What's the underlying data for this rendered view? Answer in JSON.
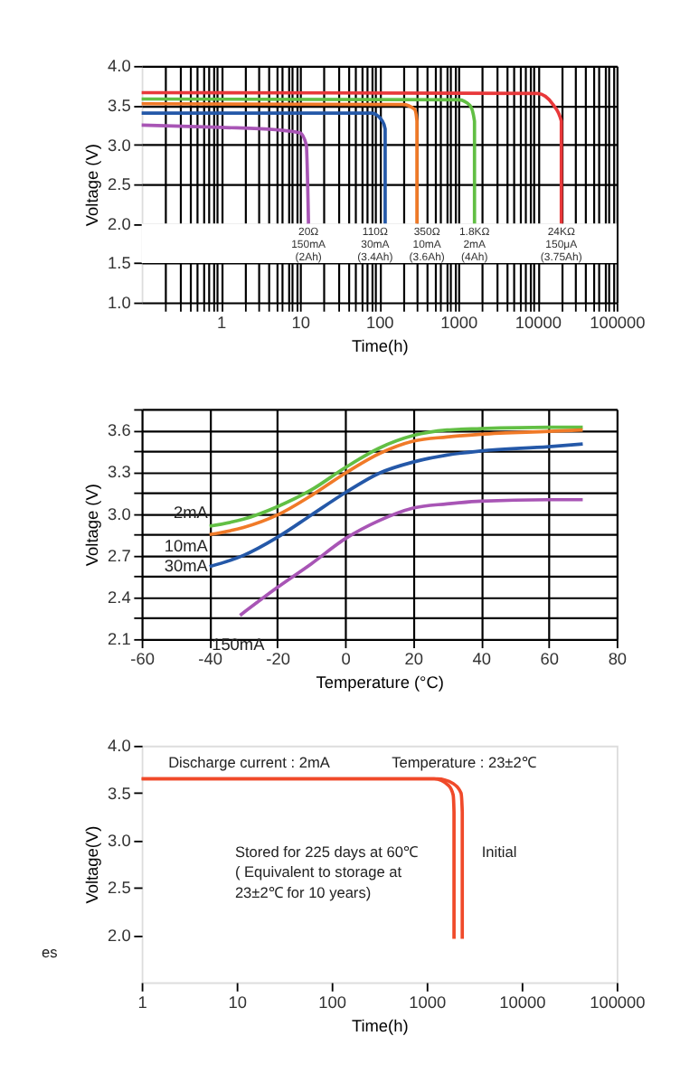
{
  "chart_data": [
    {
      "type": "line",
      "xlabel": "Time(h)",
      "ylabel": "Voltage (V)",
      "log": "x",
      "grid": true,
      "xlim": [
        0.1,
        100000
      ],
      "xticks": [
        {
          "value": 0.2,
          "label": null
        },
        {
          "value": 0.3,
          "label": null
        },
        {
          "value": 0.4,
          "label": null
        },
        {
          "value": 0.5,
          "label": null
        },
        {
          "value": 0.6,
          "label": null
        },
        {
          "value": 0.7,
          "label": null
        },
        {
          "value": 0.8,
          "label": null
        },
        {
          "value": 0.9,
          "label": null
        },
        1,
        {
          "value": 2,
          "label": null
        },
        {
          "value": 3,
          "label": null
        },
        {
          "value": 4,
          "label": null
        },
        {
          "value": 5,
          "label": null
        },
        {
          "value": 6,
          "label": null
        },
        {
          "value": 7,
          "label": null
        },
        {
          "value": 8,
          "label": null
        },
        {
          "value": 9,
          "label": null
        },
        10,
        {
          "value": 20,
          "label": null
        },
        {
          "value": 30,
          "label": null
        },
        {
          "value": 40,
          "label": null
        },
        {
          "value": 50,
          "label": null
        },
        {
          "value": 60,
          "label": null
        },
        {
          "value": 70,
          "label": null
        },
        {
          "value": 80,
          "label": null
        },
        {
          "value": 90,
          "label": null
        },
        100,
        {
          "value": 200,
          "label": null
        },
        {
          "value": 300,
          "label": null
        },
        {
          "value": 400,
          "label": null
        },
        {
          "value": 500,
          "label": null
        },
        {
          "value": 600,
          "label": null
        },
        {
          "value": 700,
          "label": null
        },
        {
          "value": 800,
          "label": null
        },
        {
          "value": 900,
          "label": null
        },
        1000,
        {
          "value": 2000,
          "label": null
        },
        {
          "value": 3000,
          "label": null
        },
        {
          "value": 4000,
          "label": null
        },
        {
          "value": 5000,
          "label": null
        },
        {
          "value": 6000,
          "label": null
        },
        {
          "value": 7000,
          "label": null
        },
        {
          "value": 8000,
          "label": null
        },
        {
          "value": 9000,
          "label": null
        },
        10000,
        {
          "value": 20000,
          "label": null
        },
        {
          "value": 30000,
          "label": null
        },
        {
          "value": 40000,
          "label": null
        },
        {
          "value": 50000,
          "label": null
        },
        {
          "value": 60000,
          "label": null
        },
        {
          "value": 70000,
          "label": null
        },
        {
          "value": 80000,
          "label": null
        },
        {
          "value": 90000,
          "label": null
        },
        100000
      ],
      "ylim": [
        1.0,
        4.0
      ],
      "yticks": [
        {
          "value": 1.0,
          "label": "1.0"
        },
        1.5,
        {
          "value": 2.0,
          "label": "2.0"
        },
        2.5,
        {
          "value": 3.0,
          "label": "3.0"
        },
        3.5,
        {
          "value": 4.0,
          "label": "4.0"
        }
      ],
      "bands": [
        {
          "axis": "y",
          "from": 1.5,
          "to": 2.0,
          "color": "#ffffff"
        }
      ],
      "series": [
        {
          "name": "20Ω\n150mA\n(2Ah)",
          "color": "#a855b5",
          "x": [
            0.1,
            1,
            5,
            10,
            12,
            12.8
          ],
          "values": [
            3.25,
            3.22,
            3.19,
            3.15,
            3.0,
            2.0
          ]
        },
        {
          "name": "110Ω\n30mA\n(3.4Ah)",
          "color": "#2458a8",
          "x": [
            0.1,
            80,
            110,
            119,
            119
          ],
          "values": [
            3.4,
            3.4,
            3.3,
            3.2,
            2.0
          ]
        },
        {
          "name": "350Ω\n10mA\n(3.6Ah)",
          "color": "#f07a28",
          "x": [
            0.1,
            200,
            280,
            300,
            300
          ],
          "values": [
            3.52,
            3.51,
            3.45,
            3.3,
            2.0
          ]
        },
        {
          "name": "1.8KΩ\n2mA\n(4Ah)",
          "color": "#62bf44",
          "x": [
            0.1,
            1000,
            1400,
            1600,
            1600
          ],
          "values": [
            3.58,
            3.57,
            3.5,
            3.3,
            2.0
          ]
        },
        {
          "name": "24KΩ\n150μA\n(3.75Ah)",
          "color": "#e8383a",
          "x": [
            0.1,
            10000,
            16000,
            20000,
            20000
          ],
          "values": [
            3.66,
            3.65,
            3.5,
            3.3,
            2.0
          ]
        }
      ]
    },
    {
      "type": "line",
      "xlabel": "Temperature (°C)",
      "ylabel": "Voltage (V)",
      "grid": true,
      "xlim": [
        -60,
        80
      ],
      "xticks": [
        -60,
        -40,
        -20,
        0,
        20,
        40,
        60,
        80
      ],
      "ylim": [
        2.1,
        3.75
      ],
      "yticks": [
        2.1,
        {
          "value": 2.25,
          "label": null
        },
        2.4,
        {
          "value": 2.55,
          "label": null
        },
        2.7,
        {
          "value": 2.85,
          "label": null
        },
        {
          "value": 3.0,
          "label": "3.0"
        },
        {
          "value": 3.15,
          "label": null
        },
        3.3,
        {
          "value": 3.45,
          "label": null
        },
        3.6,
        {
          "value": 3.75,
          "label": null
        }
      ],
      "series": [
        {
          "name": "2mA",
          "color": "#62bf44",
          "x": [
            -40,
            -30,
            -20,
            -10,
            0,
            10,
            20,
            30,
            40,
            60,
            70
          ],
          "values": [
            2.91,
            2.96,
            3.05,
            3.17,
            3.33,
            3.47,
            3.56,
            3.6,
            3.61,
            3.62,
            3.62
          ]
        },
        {
          "name": "10mA",
          "color": "#f07a28",
          "x": [
            -40,
            -30,
            -20,
            -10,
            0,
            10,
            20,
            30,
            40,
            60,
            70
          ],
          "values": [
            2.85,
            2.9,
            2.99,
            3.13,
            3.29,
            3.43,
            3.52,
            3.55,
            3.57,
            3.59,
            3.6
          ]
        },
        {
          "name": "30mA",
          "color": "#2458a8",
          "x": [
            -40,
            -30,
            -20,
            -10,
            0,
            10,
            20,
            30,
            40,
            60,
            70
          ],
          "values": [
            2.62,
            2.7,
            2.83,
            2.99,
            3.15,
            3.29,
            3.37,
            3.42,
            3.45,
            3.48,
            3.5
          ]
        },
        {
          "name": "150mA",
          "color": "#a855b5",
          "x": [
            -31,
            -20,
            -10,
            0,
            10,
            20,
            30,
            40,
            60,
            70
          ],
          "values": [
            2.27,
            2.47,
            2.64,
            2.82,
            2.95,
            3.04,
            3.07,
            3.09,
            3.1,
            3.1
          ]
        }
      ]
    },
    {
      "type": "line",
      "xlabel": "Time(h)",
      "ylabel": "Voltage(V)",
      "log": "x",
      "grid": false,
      "xlim": [
        1,
        100000
      ],
      "xticks": [
        1,
        10,
        100,
        1000,
        10000,
        100000
      ],
      "ylim": [
        1.5,
        4.0
      ],
      "yticks": [
        {
          "value": 2.0,
          "label": "2.0"
        },
        2.5,
        {
          "value": 3.0,
          "label": "3.0"
        },
        3.5,
        {
          "value": 4.0,
          "label": "4.0"
        }
      ],
      "annotations": [
        "Discharge current : 2mA",
        "Temperature : 23±2℃",
        "es"
      ],
      "series": [
        {
          "name": "Stored for 225 days at 60℃\n( Equivalent to storage at\n23±2℃ for 10 years)",
          "color": "#f04a2a",
          "x": [
            1,
            1200,
            1700,
            1900,
            1940,
            1940
          ],
          "values": [
            3.65,
            3.65,
            3.58,
            3.48,
            3.3,
            1.96
          ]
        },
        {
          "name": "Initial",
          "color": "#f04a2a",
          "x": [
            1,
            1300,
            1900,
            2300,
            2370,
            2370
          ],
          "values": [
            3.65,
            3.65,
            3.6,
            3.5,
            3.3,
            1.96
          ]
        }
      ]
    }
  ]
}
